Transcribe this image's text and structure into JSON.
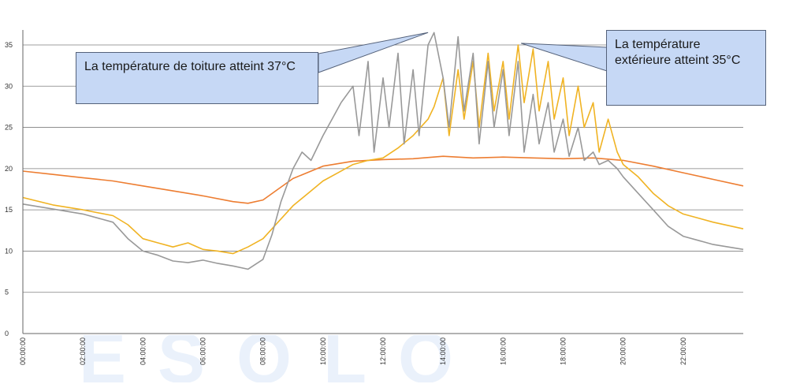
{
  "chart_data": {
    "type": "line",
    "title": "",
    "xlabel": "",
    "ylabel": "",
    "ylim": [
      0,
      36
    ],
    "yticks": [
      0,
      5,
      10,
      15,
      20,
      25,
      30,
      35
    ],
    "xlim": [
      0,
      24
    ],
    "xtick_labels": [
      "00:00:00",
      "02:00:00",
      "04:00:00",
      "06:00:00",
      "08:00:00",
      "10:00:00",
      "12:00:00",
      "14:00:00",
      "16:00:00",
      "18:00:00",
      "20:00:00",
      "22:00:00"
    ],
    "grid": "horizontal",
    "legend": "none",
    "series": [
      {
        "color": "#ed7d31",
        "x": [
          0,
          1,
          2,
          3,
          4,
          5,
          6,
          7,
          7.5,
          8,
          8.5,
          9,
          10,
          11,
          12,
          13,
          14,
          15,
          16,
          17,
          18,
          19,
          20,
          21,
          22,
          23,
          24
        ],
        "y": [
          19.7,
          19.3,
          18.9,
          18.5,
          17.9,
          17.3,
          16.7,
          16.0,
          15.8,
          16.2,
          17.5,
          18.8,
          20.3,
          20.9,
          21.1,
          21.2,
          21.5,
          21.3,
          21.4,
          21.3,
          21.2,
          21.3,
          21.0,
          20.3,
          19.5,
          18.7,
          17.9
        ]
      },
      {
        "color": "#f0b323",
        "x": [
          0,
          1,
          2,
          3,
          3.5,
          4,
          4.5,
          5,
          5.5,
          6,
          6.5,
          7,
          7.5,
          8,
          8.5,
          9,
          9.5,
          10,
          10.5,
          11,
          11.5,
          12,
          12.5,
          13,
          13.5,
          13.7,
          14,
          14.2,
          14.5,
          14.7,
          15,
          15.2,
          15.5,
          15.7,
          16,
          16.2,
          16.5,
          16.7,
          17,
          17.2,
          17.5,
          17.7,
          18,
          18.2,
          18.5,
          18.7,
          19,
          19.2,
          19.5,
          19.8,
          20,
          20.5,
          21,
          21.5,
          22,
          23,
          24
        ],
        "y": [
          16.5,
          15.6,
          15.0,
          14.3,
          13.2,
          11.5,
          11.0,
          10.5,
          11.0,
          10.2,
          10.0,
          9.7,
          10.5,
          11.5,
          13.5,
          15.5,
          17.0,
          18.5,
          19.5,
          20.5,
          21.0,
          21.3,
          22.5,
          24.0,
          26.0,
          27.5,
          31.0,
          24.0,
          32.0,
          26.0,
          33.0,
          25.0,
          34.0,
          27.0,
          33.0,
          26.0,
          35.0,
          28.0,
          34.5,
          27.0,
          33.0,
          26.0,
          31.0,
          24.0,
          30.0,
          25.0,
          28.0,
          22.0,
          26.0,
          22.0,
          20.5,
          19.0,
          17.0,
          15.5,
          14.5,
          13.5,
          12.7
        ]
      },
      {
        "color": "#999999",
        "x": [
          0,
          1,
          2,
          3,
          3.5,
          4,
          4.5,
          5,
          5.5,
          6,
          6.5,
          7,
          7.5,
          8,
          8.3,
          8.6,
          9,
          9.3,
          9.6,
          10,
          10.3,
          10.6,
          11,
          11.2,
          11.5,
          11.7,
          12,
          12.2,
          12.5,
          12.7,
          13,
          13.2,
          13.5,
          13.7,
          14,
          14.2,
          14.5,
          14.7,
          15,
          15.2,
          15.5,
          15.7,
          16,
          16.2,
          16.5,
          16.7,
          17,
          17.2,
          17.5,
          17.7,
          18,
          18.2,
          18.5,
          18.7,
          19,
          19.2,
          19.5,
          19.8,
          20,
          20.5,
          21,
          21.5,
          22,
          23,
          24
        ],
        "y": [
          15.7,
          15.1,
          14.5,
          13.5,
          11.5,
          10.0,
          9.5,
          8.8,
          8.6,
          8.9,
          8.5,
          8.2,
          7.8,
          9.0,
          12.0,
          16.0,
          20.0,
          22.0,
          21.0,
          24.0,
          26.0,
          28.0,
          30.0,
          24.0,
          33.0,
          22.0,
          31.0,
          25.0,
          34.0,
          23.0,
          32.0,
          24.0,
          35.0,
          36.5,
          31.0,
          25.0,
          36.0,
          27.0,
          34.0,
          23.0,
          33.0,
          25.0,
          32.0,
          24.0,
          33.0,
          22.0,
          29.0,
          23.0,
          28.0,
          22.0,
          26.0,
          21.5,
          25.0,
          21.0,
          22.0,
          20.5,
          21.0,
          20.0,
          19.0,
          17.0,
          15.0,
          13.0,
          11.8,
          10.8,
          10.2
        ]
      }
    ],
    "annotations": [
      {
        "text": "La température de toiture atteint 37°C",
        "x": 13.5,
        "y": 36.5
      },
      {
        "text": "La température extérieure atteint 35°C",
        "x": 16.6,
        "y": 35.2
      }
    ]
  }
}
